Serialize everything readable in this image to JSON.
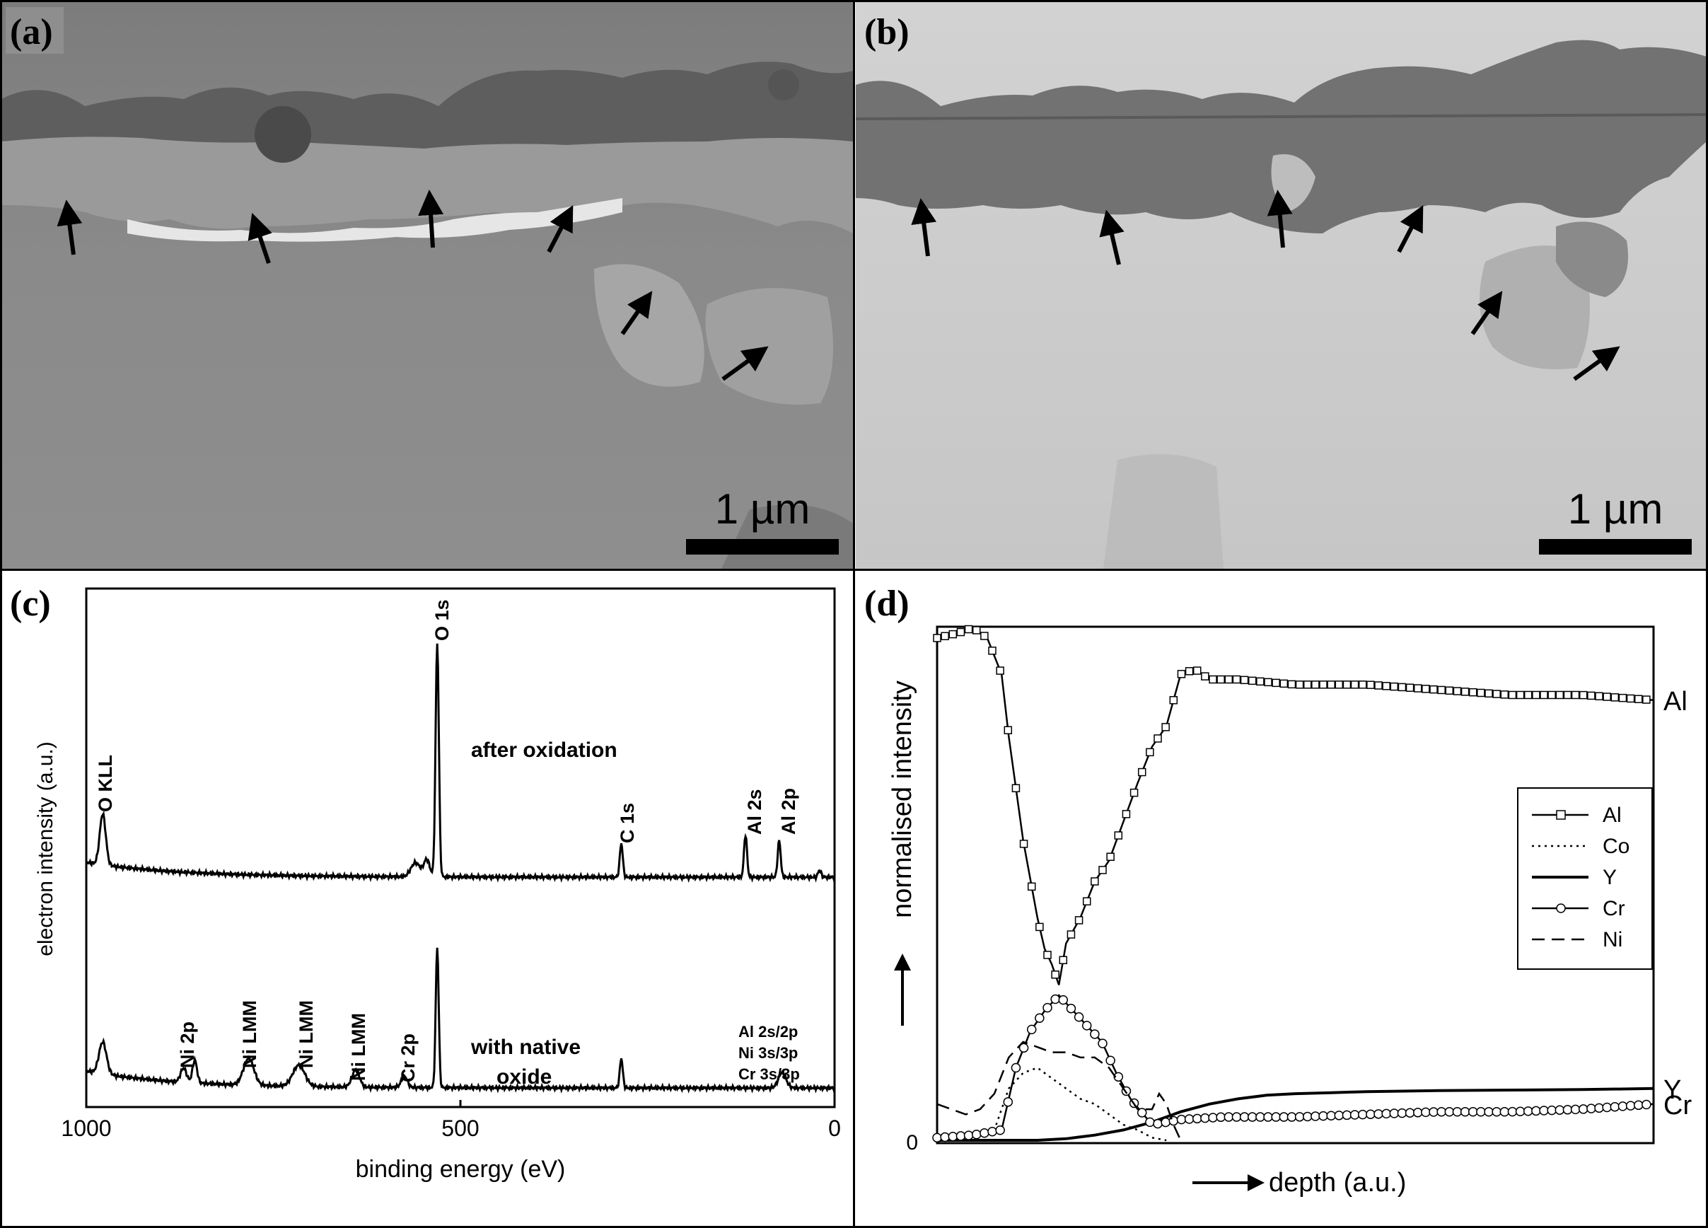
{
  "panels": {
    "a": {
      "label": "(a)",
      "scalebar": "1 µm"
    },
    "b": {
      "label": "(b)",
      "scalebar": "1 µm"
    },
    "c": {
      "label": "(c)"
    },
    "d": {
      "label": "(d)"
    }
  },
  "colors": {
    "ink": "#000000",
    "sem_a_background": "#8c8c8c",
    "sem_a_oxide": "#5a5a5a",
    "sem_b_background": "#c4c4c4",
    "sem_b_oxide": "#6c6c6c"
  },
  "icons": [
    "arrow-icon"
  ],
  "chart_data": [
    {
      "type": "line",
      "panel": "c",
      "xlabel": "binding energy (eV)",
      "ylabel": "electron intensity (a.u.)",
      "xlim": [
        1000,
        0
      ],
      "x_reversed": true,
      "xticks": [
        "1000",
        "500",
        "0"
      ],
      "series": [
        {
          "name": "after oxidation",
          "peaks": [
            {
              "label": "O KLL",
              "x": 978
            },
            {
              "label": "O 1s",
              "x": 531
            },
            {
              "label": "C 1s",
              "x": 285
            },
            {
              "label": "Al 2s",
              "x": 119
            },
            {
              "label": "Al 2p",
              "x": 74
            }
          ]
        },
        {
          "name": "with native oxide",
          "peaks": [
            {
              "label": "Ni 2p",
              "x": 855
            },
            {
              "label": "Ni LMM",
              "x": 783
            },
            {
              "label": "Ni LMM",
              "x": 716
            },
            {
              "label": "Ni LMM",
              "x": 640
            },
            {
              "label": "Cr 2p",
              "x": 575
            },
            {
              "label": "Al 2s/2p\nNi 3s/3p\nCr 3s/3p",
              "x": 70
            }
          ]
        }
      ],
      "annotations": {
        "after": "after oxidation",
        "native_line1": "with native",
        "native_line2": "oxide"
      }
    },
    {
      "type": "line",
      "panel": "d",
      "xlabel": "depth (a.u.)",
      "ylabel": "normalised intensity",
      "y_zero_label": "0",
      "xlim": [
        0,
        100
      ],
      "ylim": [
        0,
        1
      ],
      "legend_position": "right",
      "end_labels": [
        "Al",
        "Y",
        "Cr"
      ],
      "series": [
        {
          "name": "Al",
          "marker": "square",
          "x": [
            0,
            3,
            5,
            7,
            9,
            10,
            12,
            14,
            15,
            16,
            17,
            18,
            20,
            22,
            24,
            28,
            30,
            32,
            34,
            36,
            38,
            42,
            50,
            60,
            70,
            80,
            90,
            100
          ],
          "y": [
            0.97,
            0.98,
            0.99,
            0.97,
            0.9,
            0.78,
            0.58,
            0.43,
            0.37,
            0.34,
            0.3,
            0.38,
            0.43,
            0.5,
            0.54,
            0.69,
            0.76,
            0.8,
            0.9,
            0.91,
            0.89,
            0.89,
            0.88,
            0.88,
            0.87,
            0.86,
            0.86,
            0.85
          ]
        },
        {
          "name": "Co",
          "style": "dotted",
          "x": [
            0,
            5,
            8,
            10,
            12,
            14,
            16,
            18,
            20,
            22,
            24,
            26,
            28,
            30,
            32
          ],
          "y": [
            0.0,
            0.01,
            0.02,
            0.1,
            0.13,
            0.14,
            0.12,
            0.1,
            0.08,
            0.07,
            0.05,
            0.03,
            0.02,
            0.005,
            0.0
          ]
        },
        {
          "name": "Y",
          "style": "solid",
          "x": [
            0,
            5,
            10,
            14,
            18,
            22,
            26,
            30,
            34,
            38,
            42,
            46,
            50,
            55,
            60,
            65,
            70,
            80,
            90,
            100
          ],
          "y": [
            0.0,
            0.0,
            0.0,
            0.0,
            0.003,
            0.01,
            0.02,
            0.035,
            0.055,
            0.07,
            0.08,
            0.087,
            0.09,
            0.092,
            0.094,
            0.095,
            0.096,
            0.097,
            0.098,
            0.1
          ]
        },
        {
          "name": "Cr",
          "marker": "circle",
          "x": [
            0,
            5,
            9,
            11,
            13,
            15,
            17,
            19,
            21,
            23,
            25,
            27,
            30,
            34,
            40,
            50,
            60,
            70,
            80,
            90,
            100
          ],
          "y": [
            0.005,
            0.01,
            0.02,
            0.14,
            0.21,
            0.25,
            0.28,
            0.25,
            0.22,
            0.19,
            0.13,
            0.08,
            0.03,
            0.04,
            0.045,
            0.045,
            0.05,
            0.055,
            0.055,
            0.06,
            0.07
          ]
        },
        {
          "name": "Ni",
          "style": "dashed",
          "x": [
            0,
            4,
            6,
            8,
            10,
            12,
            14,
            16,
            18,
            20,
            22,
            24,
            26,
            28,
            30,
            31,
            32,
            33,
            34
          ],
          "y": [
            0.07,
            0.05,
            0.06,
            0.09,
            0.16,
            0.19,
            0.18,
            0.17,
            0.17,
            0.16,
            0.16,
            0.14,
            0.1,
            0.06,
            0.06,
            0.09,
            0.07,
            0.03,
            0.0
          ]
        }
      ]
    }
  ]
}
